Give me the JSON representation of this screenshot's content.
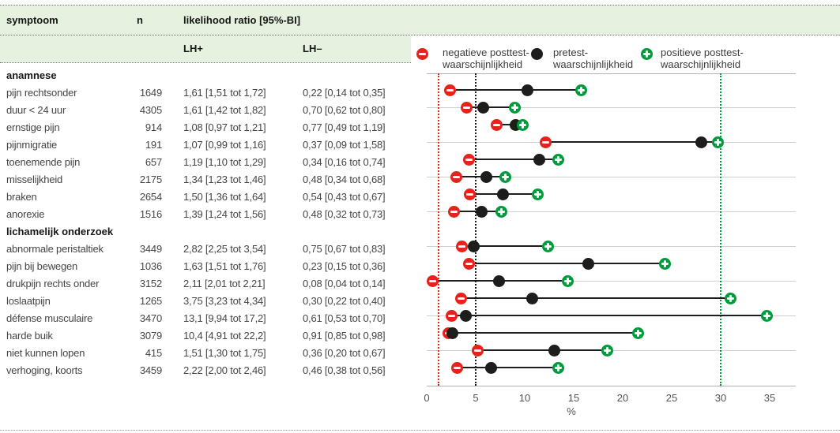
{
  "table": {
    "headers": {
      "symptom": "symptoom",
      "n": "n",
      "lr": "likelihood ratio [95%-BI]",
      "lh_plus": "LH+",
      "lh_minus": "LH–"
    },
    "sections": [
      {
        "label": "anamnese",
        "rows": [
          {
            "symptom": "pijn rechtsonder",
            "n": "1649",
            "lh_plus": "1,61 [1,51 tot 1,72]",
            "lh_minus": "0,22 [0,14 tot 0,35]"
          },
          {
            "symptom": "duur < 24 uur",
            "n": "4305",
            "lh_plus": "1,61 [1,42 tot 1,82]",
            "lh_minus": "0,70 [0,62 tot 0,80]"
          },
          {
            "symptom": "ernstige pijn",
            "n": "914",
            "lh_plus": "1,08 [0,97 tot 1,21]",
            "lh_minus": "0,77 [0,49 tot 1,19]"
          },
          {
            "symptom": "pijnmigratie",
            "n": "191",
            "lh_plus": "1,07 [0,99 tot 1,16]",
            "lh_minus": "0,37 [0,09 tot 1,58]"
          },
          {
            "symptom": "toenemende pijn",
            "n": "657",
            "lh_plus": "1,19 [1,10 tot 1,29]",
            "lh_minus": "0,34 [0,16 tot 0,74]"
          },
          {
            "symptom": "misselijkheid",
            "n": "2175",
            "lh_plus": "1,34 [1,23 tot 1,46]",
            "lh_minus": "0,48 [0,34 tot 0,68]"
          },
          {
            "symptom": "braken",
            "n": "2654",
            "lh_plus": "1,50 [1,36 tot 1,64]",
            "lh_minus": "0,54 [0,43 tot 0,67]"
          },
          {
            "symptom": "anorexie",
            "n": "1516",
            "lh_plus": "1,39 [1,24 tot 1,56]",
            "lh_minus": "0,48 [0,32 tot 0,73]"
          }
        ]
      },
      {
        "label": "lichamelijk onderzoek",
        "rows": [
          {
            "symptom": "abnormale peristaltiek",
            "n": "3449",
            "lh_plus": "2,82 [2,25 tot 3,54]",
            "lh_minus": "0,75 [0,67 tot 0,83]"
          },
          {
            "symptom": "pijn bij bewegen",
            "n": "1036",
            "lh_plus": "1,63 [1,51 tot 1,76]",
            "lh_minus": "0,23 [0,15 tot 0,36]"
          },
          {
            "symptom": "drukpijn rechts onder",
            "n": "3152",
            "lh_plus": "2,11 [2,01 tot 2,21]",
            "lh_minus": "0,08 [0,04 tot 0,14]"
          },
          {
            "symptom": "loslaatpijn",
            "n": "1265",
            "lh_plus": "3,75 [3,23 tot 4,34]",
            "lh_minus": "0,30 [0,22 tot 0,40]"
          },
          {
            "symptom": "défense musculaire",
            "n": "3470",
            "lh_plus": "13,1 [9,94 tot 17,2]",
            "lh_minus": "0,61 [0,53 tot 0,70]"
          },
          {
            "symptom": "harde buik",
            "n": "3079",
            "lh_plus": "10,4 [4,91 tot 22,2]",
            "lh_minus": "0,91 [0,85 tot 0,98]"
          },
          {
            "symptom": "niet kunnen lopen",
            "n": "415",
            "lh_plus": "1,51 [1,30 tot 1,75]",
            "lh_minus": "0,36 [0,20 tot 0,67]"
          },
          {
            "symptom": "verhoging, koorts",
            "n": "3459",
            "lh_plus": "2,22 [2,00 tot 2,46]",
            "lh_minus": "0,46 [0,38 tot 0,56]"
          }
        ]
      }
    ]
  },
  "legend": {
    "items": [
      {
        "marker": "negative-posttest-marker",
        "line1": "negatieve posttest-",
        "line2": "waarschijnlijkheid",
        "color": "#e5231b"
      },
      {
        "marker": "pretest-marker",
        "line1": "pretest-",
        "line2": "waarschijnlijkheid",
        "color": "#1d1d1b"
      },
      {
        "marker": "positive-posttest-marker",
        "line1": "positieve posttest-",
        "line2": "waarschijnlijkheid",
        "color": "#009c3c"
      }
    ]
  },
  "chart_data": {
    "type": "scatter",
    "title": "",
    "xlabel": "%",
    "xlim": [
      0,
      37.7
    ],
    "xticks": [
      0,
      5,
      10,
      15,
      20,
      25,
      30,
      35
    ],
    "grid": "horizontal",
    "legend_position": "top",
    "categories": [
      "pijn rechtsonder",
      "duur < 24 uur",
      "ernstige pijn",
      "pijnmigratie",
      "toenemende pijn",
      "misselijkheid",
      "braken",
      "anorexie",
      "abnormale peristaltiek",
      "pijn bij bewegen",
      "drukpijn rechts onder",
      "loslaatpijn",
      "défense musculaire",
      "harde buik",
      "niet kunnen lopen",
      "verhoging, koorts"
    ],
    "series": [
      {
        "name": "negatieve posttest-waarschijnlijkheid",
        "color": "#e5231b",
        "values": [
          2.4,
          4.1,
          7.1,
          12.1,
          4.3,
          3.0,
          4.4,
          2.8,
          3.6,
          4.3,
          0.6,
          3.5,
          2.5,
          2.2,
          5.2,
          3.1
        ]
      },
      {
        "name": "pretest-waarschijnlijkheid",
        "color": "#1d1d1b",
        "values": [
          10.3,
          5.8,
          9.1,
          28.0,
          11.5,
          6.1,
          7.8,
          5.6,
          4.8,
          16.5,
          7.4,
          10.8,
          4.0,
          2.6,
          13.0,
          6.6
        ]
      },
      {
        "name": "positieve posttest-waarschijnlijkheid",
        "color": "#009c3c",
        "values": [
          15.8,
          9.0,
          9.8,
          29.7,
          13.4,
          8.0,
          11.3,
          7.6,
          12.4,
          24.3,
          14.4,
          31.0,
          34.7,
          21.6,
          18.4,
          13.4
        ]
      }
    ],
    "reference_lines": [
      {
        "x": 1.2,
        "color": "#e5231b",
        "style": "dotted"
      },
      {
        "x": 5.0,
        "color": "#1d1d1b",
        "style": "dotted"
      },
      {
        "x": 30.0,
        "color": "#009c3c",
        "style": "dotted"
      }
    ]
  }
}
